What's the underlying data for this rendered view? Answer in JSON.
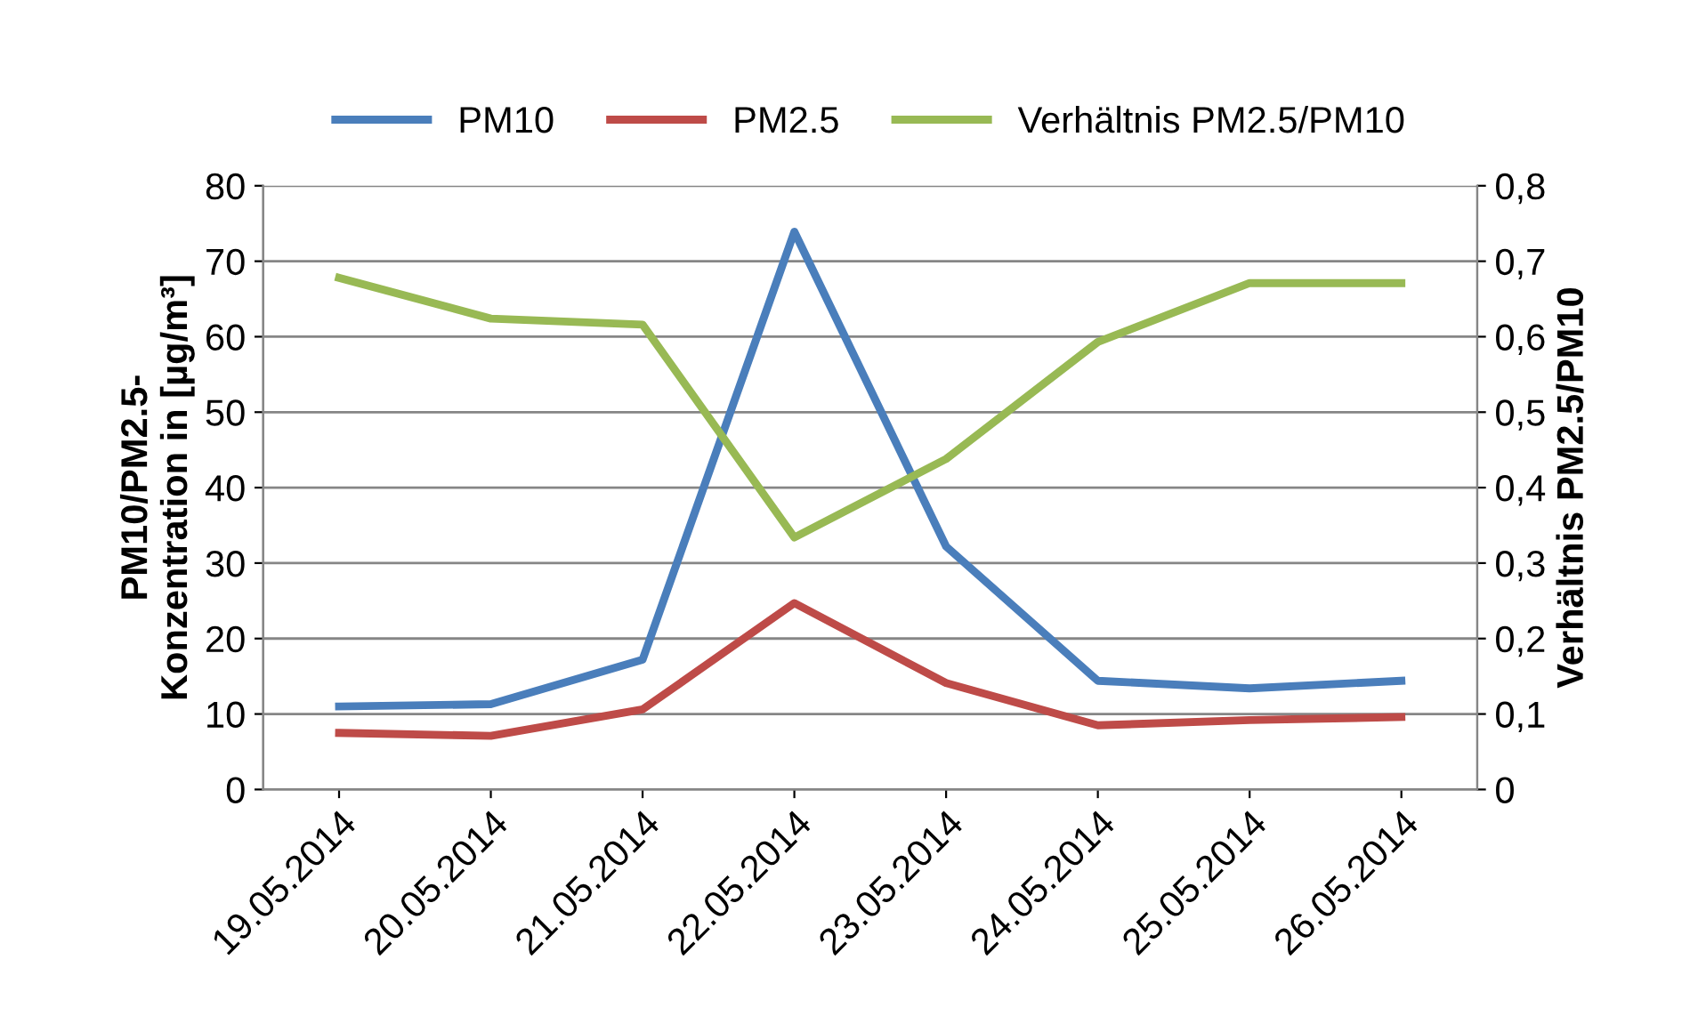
{
  "chart_data": {
    "type": "line",
    "ylabel": "PM10/PM2.5-\nKonzentration in [µg/m³]",
    "y2label": "Verhältnis PM2.5/PM10",
    "categories": [
      "19.05.2014",
      "20.05.2014",
      "21.05.2014",
      "22.05.2014",
      "23.05.2014",
      "24.05.2014",
      "25.05.2014",
      "26.05.2014"
    ],
    "series": [
      {
        "name": "PM10",
        "color": "#4a7ebb",
        "values": [
          11.0,
          11.3,
          17.2,
          73.9,
          32.2,
          14.4,
          13.4,
          14.4
        ]
      },
      {
        "name": "PM2.5",
        "color": "#be4b48",
        "values": [
          7.5,
          7.1,
          10.6,
          24.7,
          14.1,
          8.5,
          9.2,
          9.6
        ]
      },
      {
        "name": "Verhältnis PM2.5/PM10",
        "color": "#98b954",
        "axis": "y2",
        "values": [
          0.678,
          0.624,
          0.616,
          0.334,
          0.438,
          0.593,
          0.671,
          0.671
        ]
      }
    ],
    "ylim": [
      0,
      80
    ],
    "yticks": [
      0,
      10,
      20,
      30,
      40,
      50,
      60,
      70,
      80
    ],
    "y2lim": [
      0,
      0.8
    ],
    "y2ticks": [
      0,
      {
        "value": 0.1,
        "label": "0,1"
      },
      {
        "value": 0.2,
        "label": "0,2"
      },
      {
        "value": 0.3,
        "label": "0,3"
      },
      {
        "value": 0.4,
        "label": "0,4"
      },
      {
        "value": 0.5,
        "label": "0,5"
      },
      {
        "value": 0.6,
        "label": "0,6"
      },
      {
        "value": 0.7,
        "label": "0,7"
      },
      {
        "value": 0.8,
        "label": "0,8"
      }
    ],
    "grid": "y",
    "legend": "top",
    "marker": "none",
    "line_style": "solid"
  }
}
